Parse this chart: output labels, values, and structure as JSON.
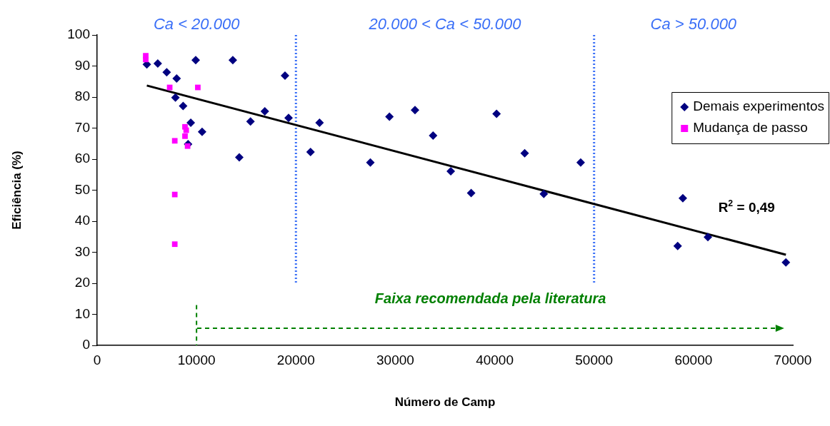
{
  "chart_data": {
    "type": "scatter",
    "xlabel": "Número de Camp",
    "ylabel": "Eficiência (%)",
    "xlim": [
      0,
      70000
    ],
    "xticks": [
      0,
      10000,
      20000,
      30000,
      40000,
      50000,
      60000,
      70000
    ],
    "ylim": [
      0,
      100
    ],
    "yticks": [
      0,
      10,
      20,
      30,
      40,
      50,
      60,
      70,
      80,
      90,
      100
    ],
    "grid": false,
    "legend": "top right",
    "series": [
      {
        "name": "Demais experimentos",
        "color": "#000080",
        "marker": "diamond",
        "x": [
          5000,
          6100,
          7000,
          8000,
          9920,
          13650,
          7880,
          8650,
          9420,
          10560,
          9150,
          16870,
          15430,
          18900,
          19260,
          14300,
          21470,
          22380,
          29410,
          31980,
          33800,
          27490,
          35580,
          37630,
          40190,
          43020,
          44940,
          48650,
          58930,
          58410,
          61450,
          69300
        ],
        "values": [
          90.5,
          90.8,
          88.0,
          86.0,
          91.9,
          91.9,
          79.8,
          77.1,
          71.7,
          68.8,
          64.8,
          75.4,
          72.1,
          86.9,
          73.3,
          60.6,
          62.3,
          71.7,
          73.7,
          75.8,
          67.6,
          58.9,
          56.1,
          49.1,
          74.6,
          61.9,
          48.8,
          58.9,
          47.4,
          32.0,
          34.9,
          26.7
        ]
      },
      {
        "name": "Mudança de passo",
        "color": "#ff00ff",
        "marker": "square",
        "x": [
          4890,
          4890,
          7300,
          10130,
          8840,
          8960,
          8840,
          7810,
          9100,
          7810,
          7810
        ],
        "values": [
          93.3,
          92.1,
          83.1,
          83.1,
          70.4,
          69.3,
          67.4,
          65.9,
          64.2,
          48.6,
          32.6
        ]
      },
      {
        "type": "line",
        "color": "#000000",
        "marker": "none",
        "line_style": "solid",
        "x": [
          5000,
          69300
        ],
        "values": [
          83.7,
          29.2
        ]
      }
    ],
    "ref_lines": [
      {
        "axis": "x",
        "value": 20000,
        "color": "#3a6ff7",
        "line_style": "dotted"
      },
      {
        "axis": "x",
        "value": 50000,
        "color": "#3a6ff7",
        "line_style": "dotted"
      },
      {
        "axis": "x",
        "value": 10000,
        "color": "#008000",
        "line_style": "dashed",
        "label": "Faixa recomendada pela literatura"
      }
    ],
    "annotations": [
      "Ca < 20.000",
      "20.000 < Ca < 50.000",
      "Ca > 50.000",
      "R$^{2}$ = 0,49"
    ]
  }
}
